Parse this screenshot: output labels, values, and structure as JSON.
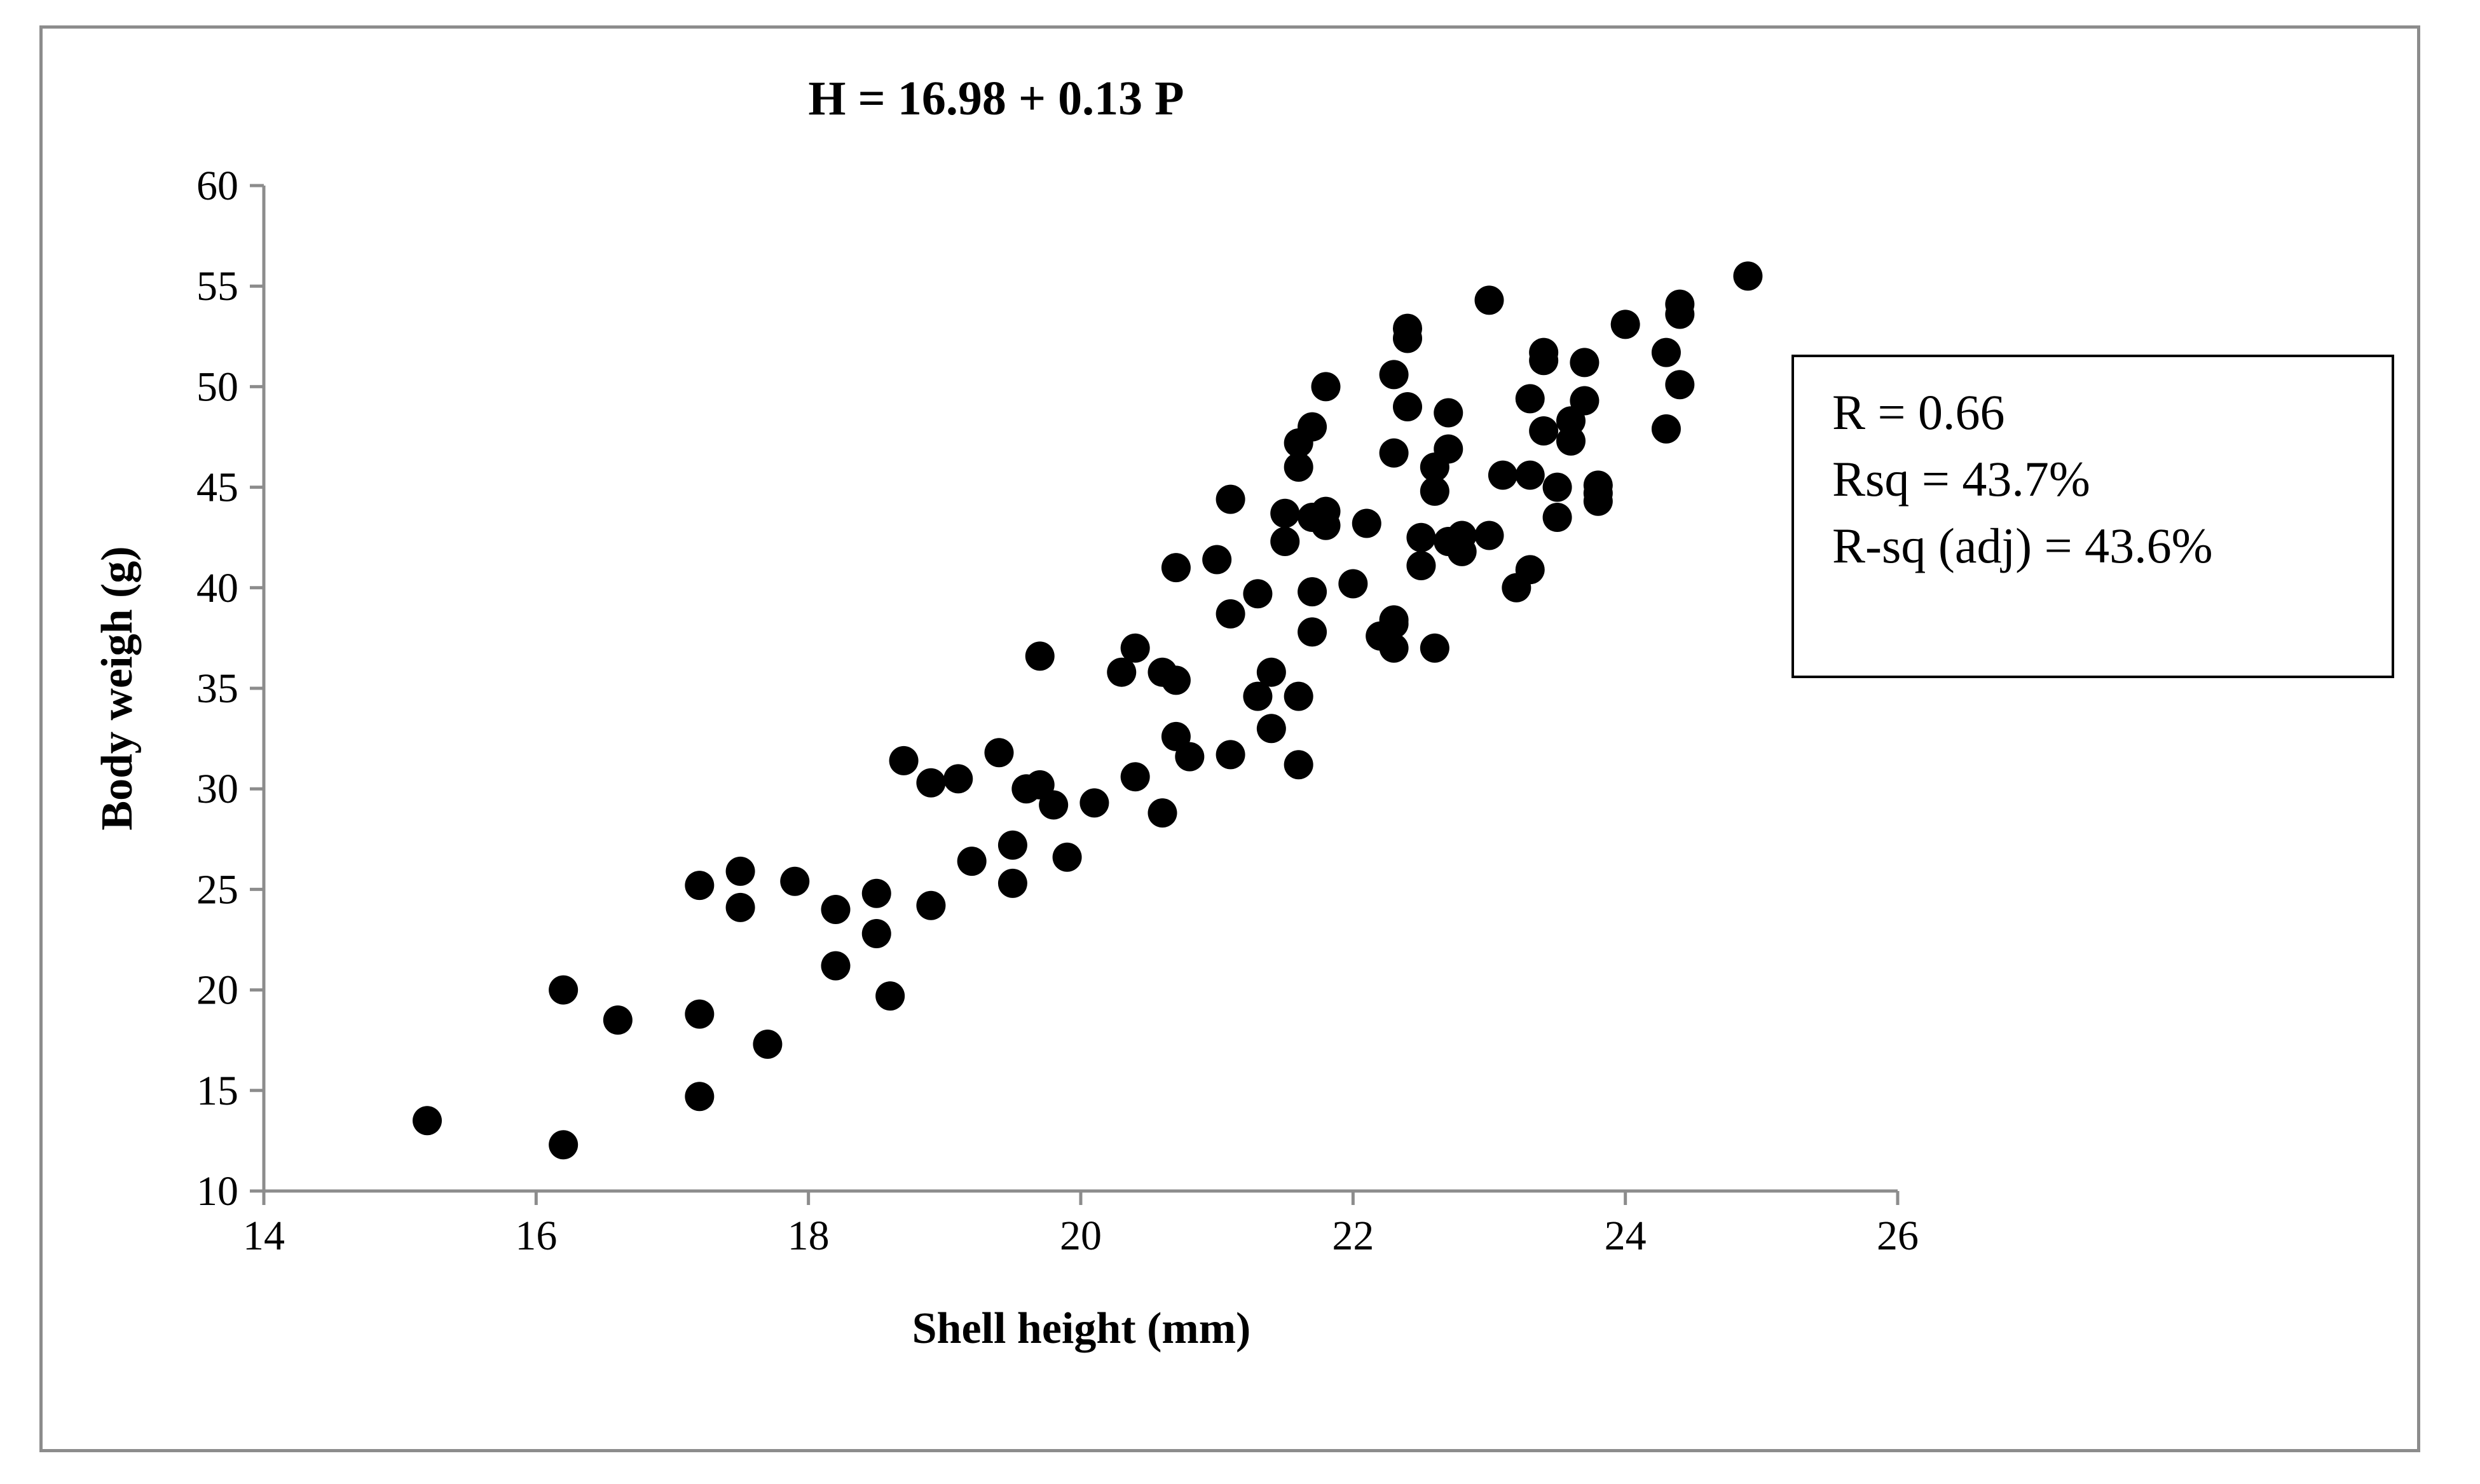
{
  "chart_data": {
    "type": "scatter",
    "title": "H = 16.98 + 0.13 P",
    "xlabel": "Shell height (mm)",
    "ylabel": "Body weigh (g)",
    "xlim": [
      14,
      26
    ],
    "ylim": [
      10,
      60
    ],
    "xticks": [
      14,
      16,
      18,
      20,
      22,
      24,
      26
    ],
    "yticks": [
      10,
      15,
      20,
      25,
      30,
      35,
      40,
      45,
      50,
      55,
      60
    ],
    "grid": false,
    "legend": "none",
    "marker_color": "#000000",
    "annotations": [
      "R = 0.66",
      "Rsq = 43.7%",
      "R-sq (adj) = 43.6%"
    ],
    "points": [
      [
        15.2,
        13.5
      ],
      [
        16.2,
        12.3
      ],
      [
        16.2,
        20.0
      ],
      [
        16.6,
        18.5
      ],
      [
        17.2,
        25.2
      ],
      [
        17.2,
        18.8
      ],
      [
        17.2,
        14.7
      ],
      [
        17.5,
        25.9
      ],
      [
        17.5,
        24.1
      ],
      [
        17.7,
        17.3
      ],
      [
        17.9,
        25.4
      ],
      [
        18.2,
        24.0
      ],
      [
        18.2,
        21.2
      ],
      [
        18.5,
        24.8
      ],
      [
        18.5,
        22.8
      ],
      [
        18.6,
        19.7
      ],
      [
        18.7,
        31.4
      ],
      [
        18.9,
        30.3
      ],
      [
        18.9,
        24.2
      ],
      [
        19.1,
        30.5
      ],
      [
        19.2,
        26.4
      ],
      [
        19.4,
        31.8
      ],
      [
        19.5,
        27.2
      ],
      [
        19.5,
        25.3
      ],
      [
        19.6,
        30.0
      ],
      [
        19.7,
        36.6
      ],
      [
        19.7,
        30.2
      ],
      [
        19.8,
        29.2
      ],
      [
        19.9,
        26.6
      ],
      [
        20.1,
        29.3
      ],
      [
        20.3,
        35.8
      ],
      [
        20.4,
        37.0
      ],
      [
        20.4,
        30.6
      ],
      [
        20.6,
        35.8
      ],
      [
        20.6,
        28.8
      ],
      [
        20.7,
        41.0
      ],
      [
        20.7,
        35.4
      ],
      [
        20.7,
        32.6
      ],
      [
        20.8,
        31.6
      ],
      [
        21.0,
        41.4
      ],
      [
        21.1,
        44.4
      ],
      [
        21.1,
        38.7
      ],
      [
        21.1,
        31.7
      ],
      [
        21.3,
        39.7
      ],
      [
        21.3,
        34.6
      ],
      [
        21.4,
        35.8
      ],
      [
        21.4,
        33.0
      ],
      [
        21.5,
        43.7
      ],
      [
        21.5,
        42.3
      ],
      [
        21.6,
        47.2
      ],
      [
        21.6,
        46.0
      ],
      [
        21.6,
        34.6
      ],
      [
        21.6,
        31.2
      ],
      [
        21.7,
        48.0
      ],
      [
        21.7,
        43.5
      ],
      [
        21.7,
        39.8
      ],
      [
        21.7,
        37.8
      ],
      [
        21.8,
        50.0
      ],
      [
        21.8,
        43.1
      ],
      [
        21.8,
        43.8
      ],
      [
        22.0,
        40.2
      ],
      [
        22.1,
        43.2
      ],
      [
        22.2,
        37.6
      ],
      [
        22.3,
        50.6
      ],
      [
        22.3,
        46.7
      ],
      [
        22.3,
        38.4
      ],
      [
        22.3,
        37.0
      ],
      [
        22.3,
        38.2
      ],
      [
        22.4,
        49.0
      ],
      [
        22.4,
        52.4
      ],
      [
        22.4,
        52.9
      ],
      [
        22.5,
        42.5
      ],
      [
        22.5,
        41.1
      ],
      [
        22.6,
        46.0
      ],
      [
        22.6,
        44.8
      ],
      [
        22.6,
        37.0
      ],
      [
        22.7,
        46.9
      ],
      [
        22.7,
        42.3
      ],
      [
        22.7,
        48.7
      ],
      [
        22.8,
        41.8
      ],
      [
        22.8,
        42.6
      ],
      [
        23.0,
        54.3
      ],
      [
        23.0,
        42.6
      ],
      [
        23.1,
        45.6
      ],
      [
        23.2,
        40.0
      ],
      [
        23.3,
        49.4
      ],
      [
        23.3,
        45.6
      ],
      [
        23.3,
        40.9
      ],
      [
        23.4,
        47.8
      ],
      [
        23.4,
        51.7
      ],
      [
        23.4,
        51.3
      ],
      [
        23.5,
        43.5
      ],
      [
        23.5,
        45.0
      ],
      [
        23.6,
        48.3
      ],
      [
        23.6,
        47.3
      ],
      [
        23.7,
        49.3
      ],
      [
        23.7,
        51.2
      ],
      [
        23.8,
        44.7
      ],
      [
        23.8,
        44.3
      ],
      [
        23.8,
        45.1
      ],
      [
        24.0,
        53.1
      ],
      [
        24.3,
        51.7
      ],
      [
        24.3,
        47.9
      ],
      [
        24.4,
        50.1
      ],
      [
        24.4,
        53.6
      ],
      [
        24.4,
        54.1
      ],
      [
        24.9,
        55.5
      ]
    ]
  }
}
